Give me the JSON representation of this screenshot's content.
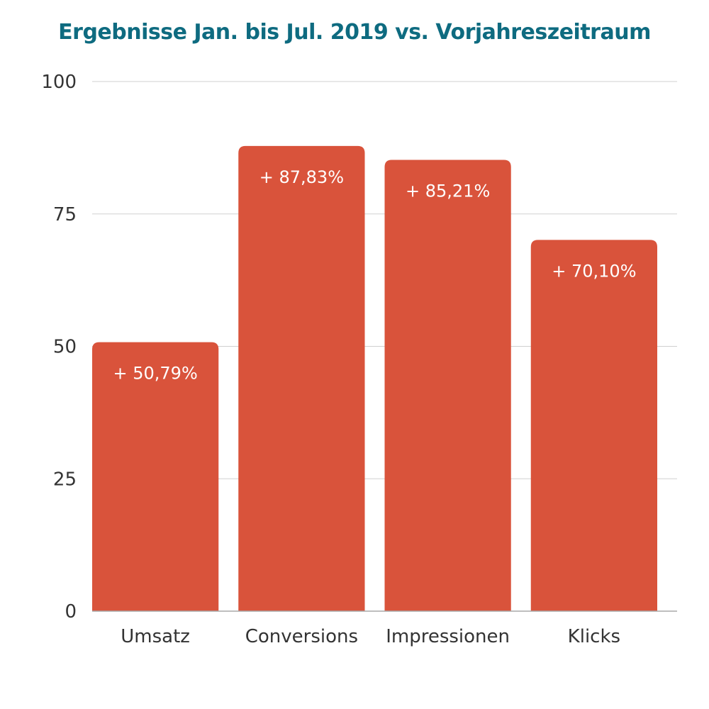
{
  "chart_data": {
    "type": "bar",
    "title": "Ergebnisse Jan. bis Jul. 2019 vs. Vorjahreszeitraum",
    "xlabel": "",
    "ylabel": "",
    "categories": [
      "Umsatz",
      "Conversions",
      "Impressionen",
      "Klicks"
    ],
    "values": [
      50.79,
      87.83,
      85.21,
      70.1
    ],
    "data_labels": [
      "+ 50,79%",
      "+ 87,83%",
      "+ 85,21%",
      "+ 70,10%"
    ],
    "ylim": [
      0,
      100
    ],
    "yticks": [
      "0",
      "25",
      "50",
      "75",
      "100"
    ],
    "ytick_values": [
      0,
      25,
      50,
      75,
      100
    ],
    "grid": true,
    "legend": "none",
    "colors": {
      "bar": "#d9533b",
      "title": "#0e6b80"
    }
  }
}
